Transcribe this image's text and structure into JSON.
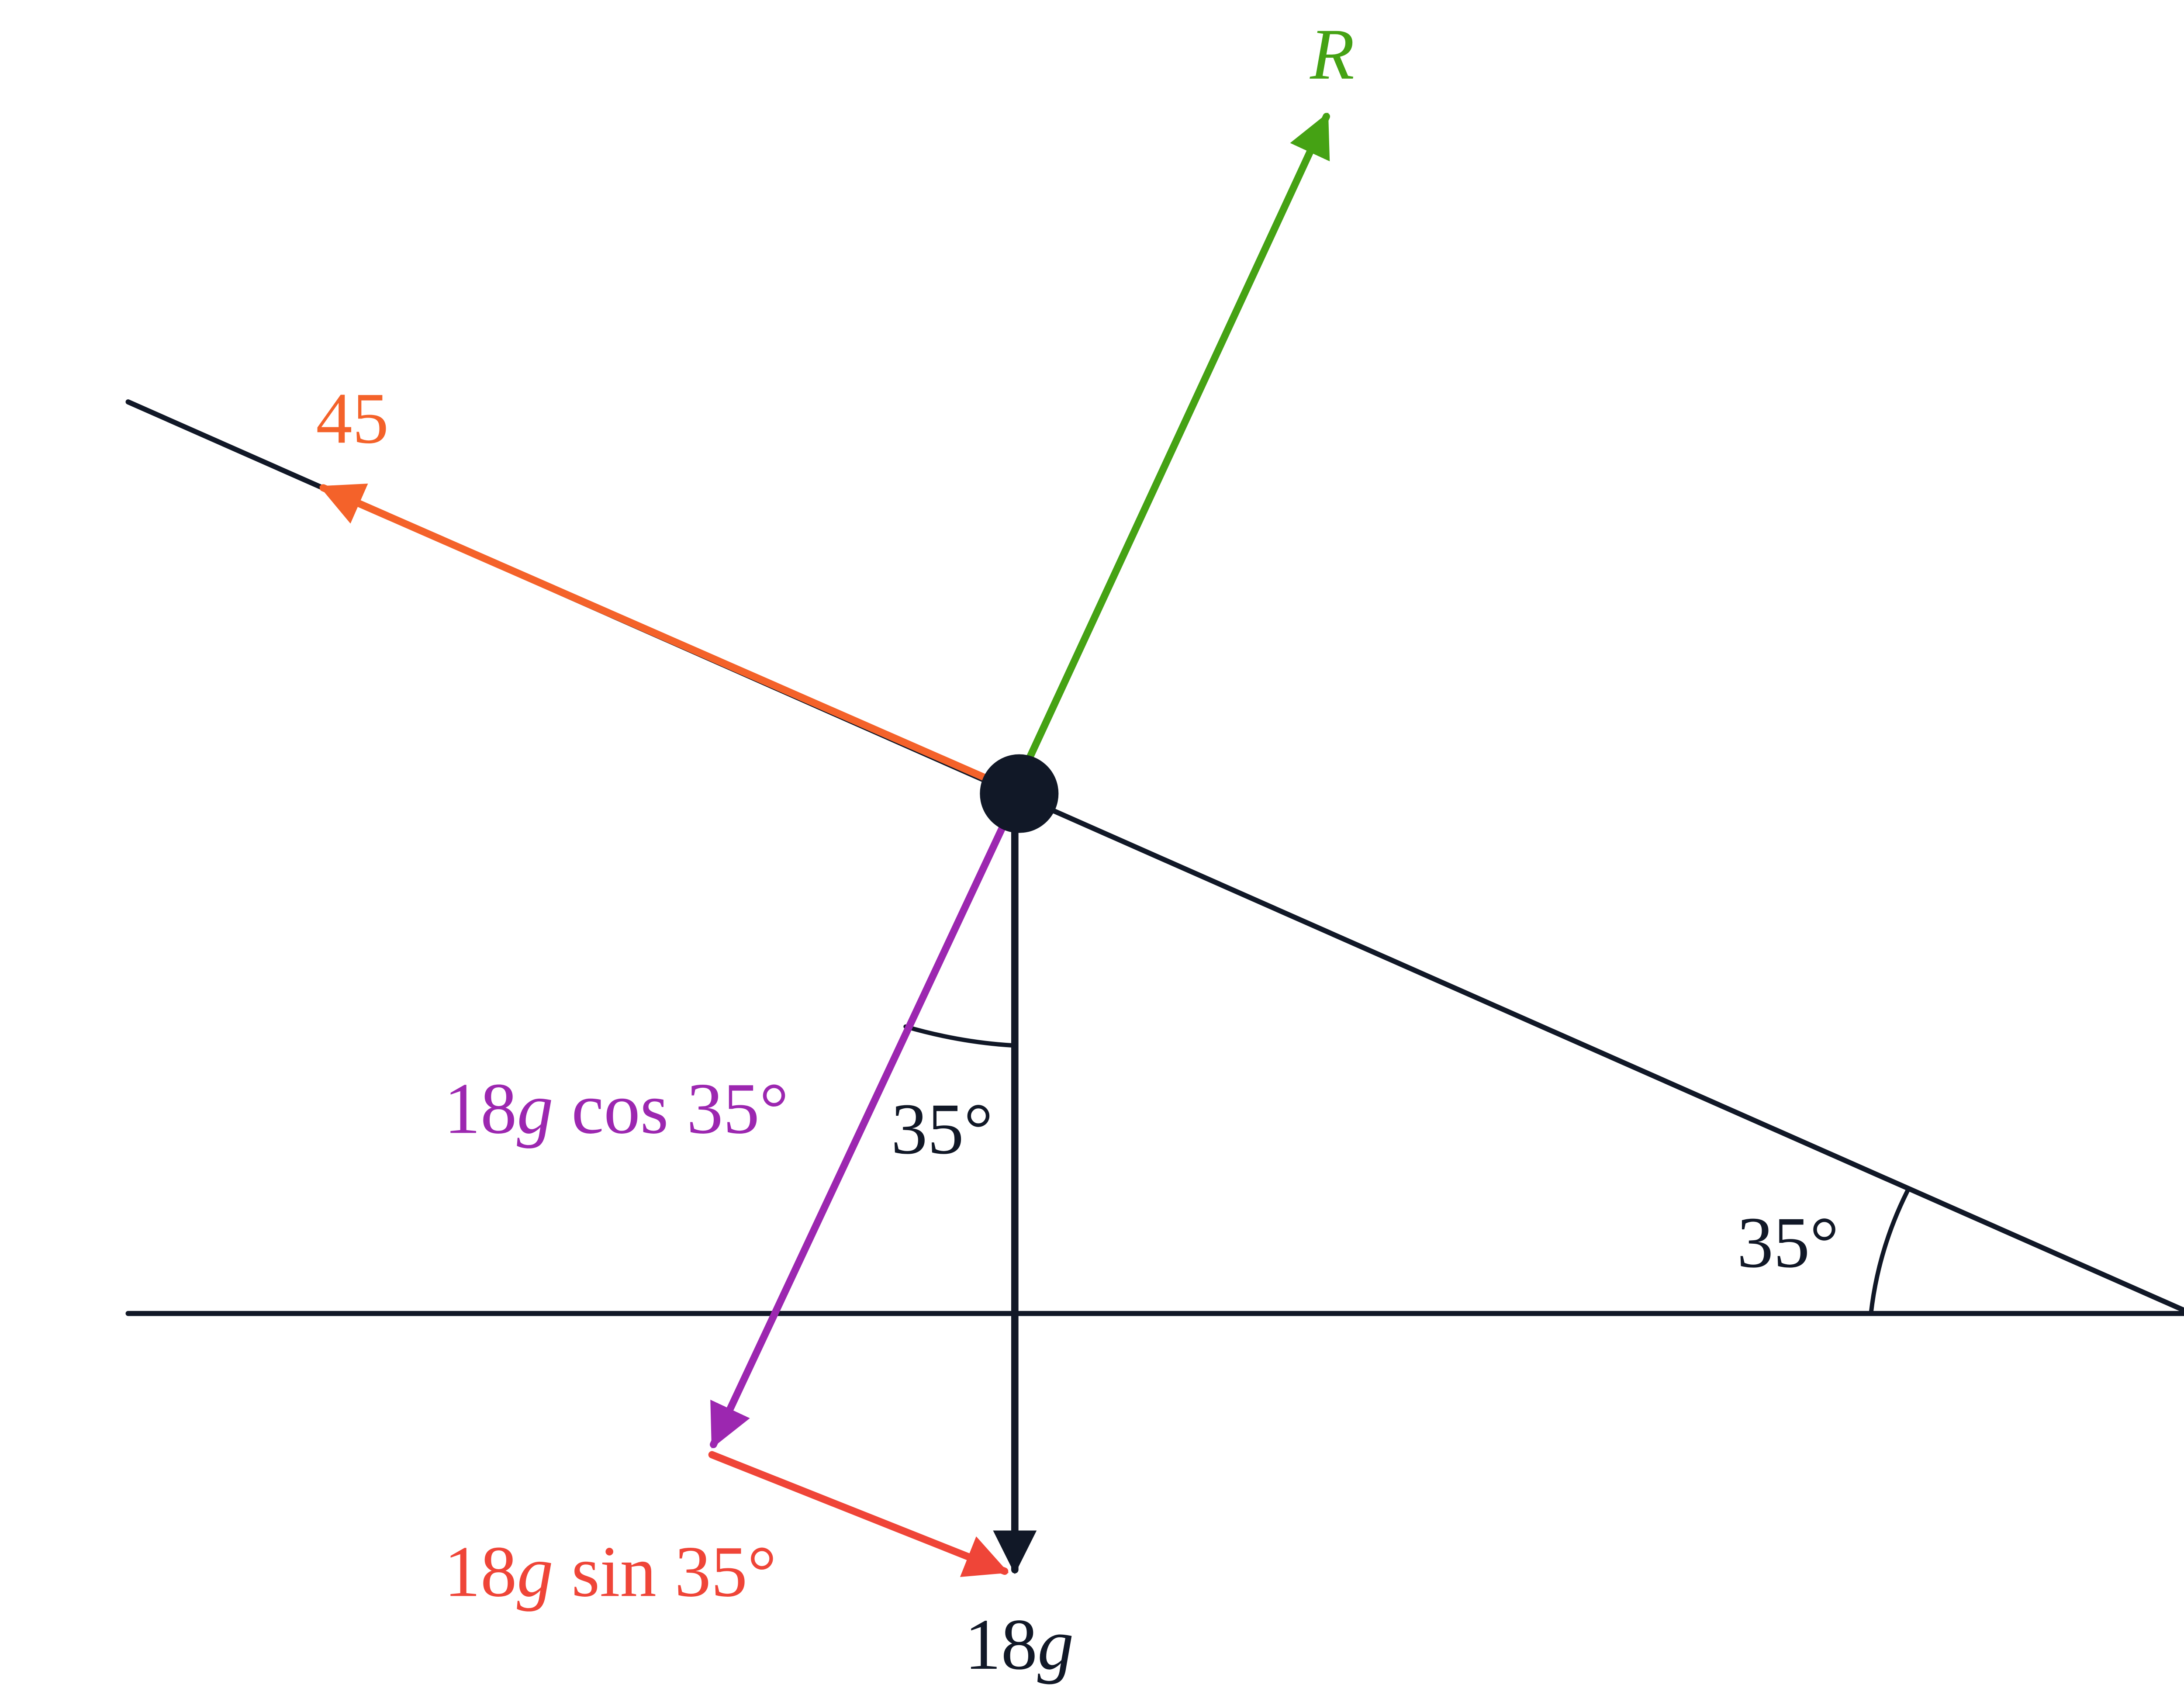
{
  "forces": {
    "reaction": {
      "label": "R"
    },
    "pull": {
      "label": "45"
    },
    "weight": {
      "coefficient": "18",
      "variable": "g"
    },
    "normal_component": {
      "coefficient": "18",
      "variable": "g",
      "function": " cos 35°"
    },
    "parallel_component": {
      "coefficient": "18",
      "variable": "g",
      "function": " sin 35°"
    }
  },
  "angles": {
    "at_particle": "35°",
    "at_incline": "35°"
  }
}
